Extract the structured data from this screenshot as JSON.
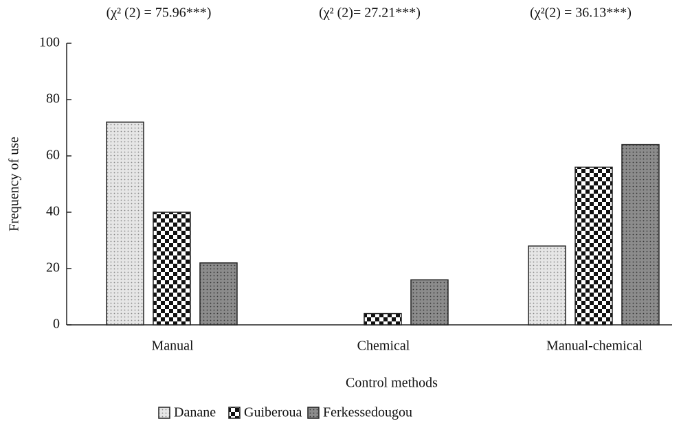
{
  "chart_data": {
    "type": "bar",
    "annotations": [
      "(χ² (2) = 75.96***)",
      "(χ² (2)= 27.21***)",
      "(χ²(2) = 36.13***)"
    ],
    "x_label": "Control methods",
    "y_label": "Frequency of use",
    "categories": [
      "Manual",
      "Chemical",
      "Manual-chemical"
    ],
    "series": [
      {
        "name": "Danane",
        "color": "#e6e6e6",
        "values": [
          72,
          0,
          28
        ]
      },
      {
        "name": "Guiberoua",
        "color": "#ffffff",
        "values": [
          40,
          4,
          56
        ]
      },
      {
        "name": "Ferkessedougou",
        "color": "#8c8c8c",
        "values": [
          22,
          16,
          64
        ]
      }
    ],
    "ylim": [
      0,
      100
    ],
    "yticks": [
      0,
      20,
      40,
      60,
      80,
      100
    ],
    "legend": "bottom"
  }
}
